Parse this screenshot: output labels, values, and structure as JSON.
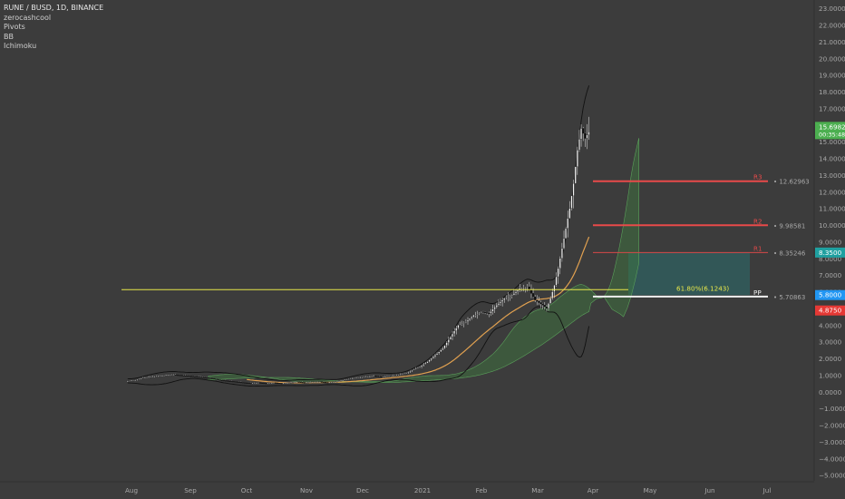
{
  "legend": {
    "symbol": "RUNE / BUSD, 1D, BINANCE",
    "indicators": [
      "zerocashcool",
      "Pivots",
      "BB",
      "Ichimoku"
    ]
  },
  "chart_data": {
    "type": "candlestick",
    "xaxis": {
      "labels": [
        "Aug",
        "Sep",
        "Oct",
        "Nov",
        "Dec",
        "2021",
        "Feb",
        "Mar",
        "Apr",
        "May",
        "Jun",
        "Jul"
      ]
    },
    "yaxis": {
      "ylim": [
        -5.4,
        23.5
      ],
      "ticks": [
        23,
        22,
        21,
        20,
        19,
        18,
        17,
        16,
        15,
        14,
        13,
        12,
        11,
        10,
        9,
        8,
        7,
        6,
        5,
        4,
        3,
        2,
        1,
        0,
        -1,
        -2,
        -3,
        -4,
        -5
      ],
      "tick_labels": [
        "23.0000",
        "22.0000",
        "21.0000",
        "20.0000",
        "19.0000",
        "18.0000",
        "17.0000",
        "16.0000",
        "15.0000",
        "14.0000",
        "13.0000",
        "12.0000",
        "11.0000",
        "10.0000",
        "9.0000",
        "8.0000",
        "7.0000",
        "6.0000",
        "5.0000",
        "4.0000",
        "3.0000",
        "2.0000",
        "1.0000",
        "0.0000",
        "−1.0000",
        "−2.0000",
        "−3.0000",
        "−4.0000",
        "−5.0000"
      ]
    },
    "price_path": [
      [
        -2,
        0.65
      ],
      [
        2,
        0.7
      ],
      [
        6,
        0.85
      ],
      [
        10,
        0.9
      ],
      [
        14,
        0.95
      ],
      [
        18,
        1.0
      ],
      [
        22,
        1.02
      ],
      [
        26,
        0.98
      ],
      [
        30,
        0.95
      ],
      [
        34,
        0.9
      ],
      [
        38,
        0.85
      ],
      [
        42,
        0.8
      ],
      [
        46,
        0.7
      ],
      [
        50,
        0.65
      ],
      [
        54,
        0.6
      ],
      [
        58,
        0.55
      ],
      [
        62,
        0.5
      ],
      [
        66,
        0.55
      ],
      [
        70,
        0.5
      ],
      [
        74,
        0.55
      ],
      [
        78,
        0.5
      ],
      [
        82,
        0.55
      ],
      [
        86,
        0.6
      ],
      [
        90,
        0.55
      ],
      [
        94,
        0.6
      ],
      [
        98,
        0.6
      ],
      [
        102,
        0.55
      ],
      [
        106,
        0.6
      ],
      [
        110,
        0.7
      ],
      [
        114,
        0.8
      ],
      [
        118,
        0.85
      ],
      [
        122,
        0.9
      ],
      [
        126,
        0.95
      ],
      [
        130,
        0.9
      ],
      [
        134,
        0.95
      ],
      [
        138,
        1.0
      ],
      [
        142,
        1.1
      ],
      [
        146,
        1.3
      ],
      [
        150,
        1.5
      ],
      [
        154,
        1.8
      ],
      [
        158,
        2.2
      ],
      [
        162,
        2.6
      ],
      [
        166,
        3.3
      ],
      [
        170,
        4.0
      ],
      [
        174,
        4.2
      ],
      [
        178,
        4.6
      ],
      [
        182,
        4.8
      ],
      [
        186,
        4.7
      ],
      [
        190,
        5.2
      ],
      [
        194,
        5.6
      ],
      [
        198,
        5.8
      ],
      [
        202,
        6.2
      ],
      [
        206,
        6.3
      ],
      [
        210,
        5.5
      ],
      [
        214,
        5.2
      ],
      [
        216,
        5.0
      ],
      [
        218,
        5.6
      ],
      [
        220,
        6.4
      ],
      [
        222,
        7.4
      ],
      [
        224,
        8.6
      ],
      [
        226,
        9.8
      ],
      [
        228,
        11.0
      ],
      [
        230,
        12.5
      ],
      [
        232,
        14.5
      ],
      [
        234,
        15.8
      ],
      [
        236,
        15.2
      ],
      [
        238,
        15.6
      ]
    ],
    "pivots": [
      {
        "label": "R3",
        "value": 12.62963,
        "value_label": "12.62963",
        "color": "#e84a4a"
      },
      {
        "label": "R2",
        "value": 9.98581,
        "value_label": "9.98581",
        "color": "#e84a4a"
      },
      {
        "label": "R1",
        "value": 8.35246,
        "value_label": "8.35246",
        "color": "#d64848"
      },
      {
        "label": "PP",
        "value": 5.70863,
        "value_label": "5.70863",
        "color": "#f0f0f0"
      }
    ],
    "fib_line": {
      "label": "61.80%(6.1243)",
      "value": 6.1243,
      "color": "#e8e84a"
    },
    "target_zone": {
      "from": 5.8,
      "to": 8.35,
      "color": "#1f8a8a"
    },
    "stop_zone": {
      "from": 4.87,
      "to": 5.8,
      "color": "#a33a3a"
    },
    "price_labels": [
      {
        "text": "15.6982",
        "sub": "00:35:48",
        "value": 15.6982,
        "bg": "#4caf50"
      },
      {
        "text": "8.3500",
        "value": 8.35,
        "bg": "#1fa0a0"
      },
      {
        "text": "5.8000",
        "value": 5.8,
        "bg": "#2196f3"
      },
      {
        "text": "4.8750",
        "value": 4.875,
        "bg": "#e53935"
      }
    ]
  }
}
